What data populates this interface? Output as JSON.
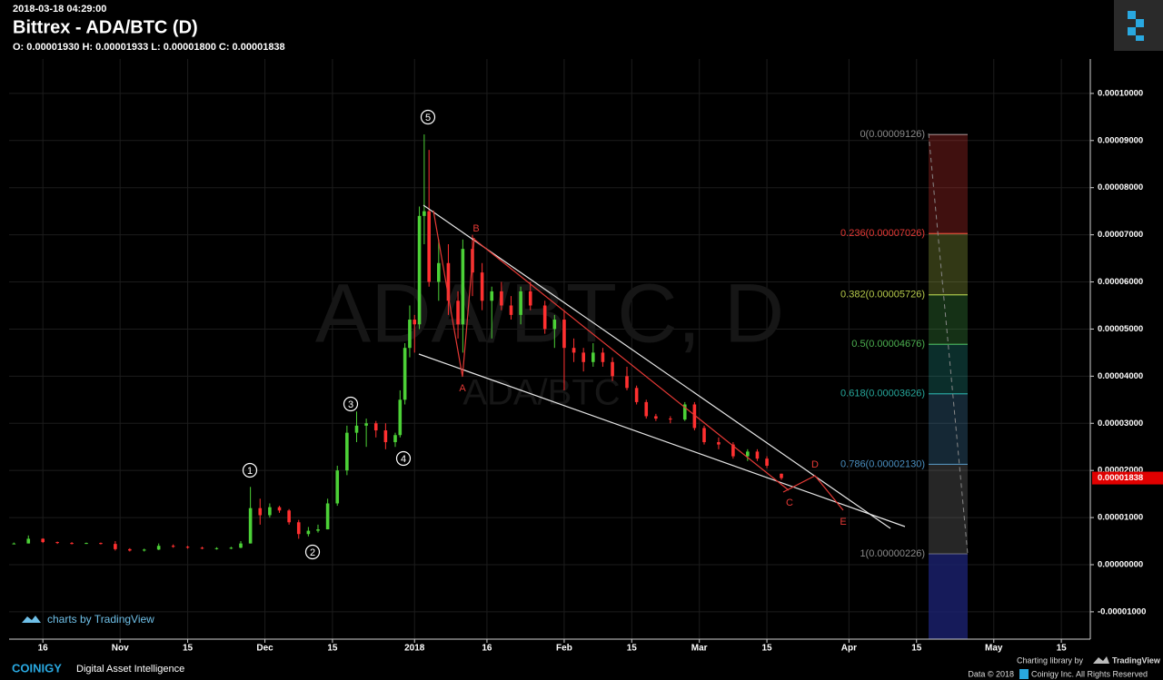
{
  "header": {
    "timestamp": "2018-03-18 04:29:00",
    "title": "Bittrex - ADA/BTC (D)",
    "ohlc": "O: 0.00001930 H: 0.00001933 L: 0.00001800 C: 0.00001838"
  },
  "chart_data": {
    "type": "candlestick",
    "watermark": "ADA/BTC, D",
    "watermark_sub": "ADA/BTC",
    "up_color": "#4cd137",
    "down_color": "#ff3030",
    "grid": true,
    "x": [
      "2017-10-10",
      "2017-10-13",
      "2017-10-16",
      "2017-10-19",
      "2017-10-22",
      "2017-10-25",
      "2017-10-28",
      "2017-10-31",
      "2017-11-03",
      "2017-11-06",
      "2017-11-09",
      "2017-11-12",
      "2017-11-15",
      "2017-11-18",
      "2017-11-21",
      "2017-11-24",
      "2017-11-26",
      "2017-11-28",
      "2017-11-30",
      "2017-12-02",
      "2017-12-04",
      "2017-12-06",
      "2017-12-08",
      "2017-12-10",
      "2017-12-12",
      "2017-12-14",
      "2017-12-16",
      "2017-12-18",
      "2017-12-20",
      "2017-12-22",
      "2017-12-24",
      "2017-12-26",
      "2017-12-28",
      "2017-12-29",
      "2017-12-30",
      "2017-12-31",
      "2018-01-01",
      "2018-01-02",
      "2018-01-03",
      "2018-01-04",
      "2018-01-06",
      "2018-01-08",
      "2018-01-10",
      "2018-01-11",
      "2018-01-13",
      "2018-01-15",
      "2018-01-17",
      "2018-01-19",
      "2018-01-21",
      "2018-01-23",
      "2018-01-25",
      "2018-01-28",
      "2018-01-30",
      "2018-02-01",
      "2018-02-03",
      "2018-02-05",
      "2018-02-07",
      "2018-02-09",
      "2018-02-11",
      "2018-02-14",
      "2018-02-16",
      "2018-02-18",
      "2018-02-20",
      "2018-02-23",
      "2018-02-26",
      "2018-02-28",
      "2018-03-02",
      "2018-03-05",
      "2018-03-08",
      "2018-03-11",
      "2018-03-13",
      "2018-03-15",
      "2018-03-18"
    ],
    "open": [
      4.5e-06,
      4.5e-06,
      5.5e-06,
      4.8e-06,
      4.6e-06,
      4.5e-06,
      4.6e-06,
      4.4e-06,
      3.3e-06,
      3e-06,
      3.2e-06,
      4e-06,
      3.8e-06,
      3.6e-06,
      3.4e-06,
      3.5e-06,
      3.6e-06,
      4.5e-06,
      1.2e-05,
      1.05e-05,
      1.22e-05,
      1.15e-05,
      9e-06,
      6.5e-06,
      7.2e-06,
      7.5e-06,
      1.3e-05,
      2e-05,
      2.8e-05,
      2.95e-05,
      3e-05,
      2.85e-05,
      2.6e-05,
      2.75e-05,
      3.5e-05,
      4.6e-05,
      5.2e-05,
      5.1e-05,
      7.4e-05,
      7.5e-05,
      6e-05,
      6.4e-05,
      5.6e-05,
      5.1e-05,
      6.7e-05,
      6.2e-05,
      5.6e-05,
      5.8e-05,
      5.5e-05,
      5.3e-05,
      5.8e-05,
      5.5e-05,
      5e-05,
      5.2e-05,
      4.6e-05,
      4.5e-05,
      4.3e-05,
      4.5e-05,
      4.3e-05,
      4e-05,
      3.75e-05,
      3.45e-05,
      3.15e-05,
      3.1e-05,
      3.08e-05,
      3.4e-05,
      2.9e-05,
      2.6e-05,
      2.55e-05,
      2.3e-05,
      2.4e-05,
      2.25e-05,
      1.93e-05
    ],
    "high": [
      4.7e-06,
      6.2e-06,
      5.6e-06,
      4.9e-06,
      4.8e-06,
      4.7e-06,
      4.7e-06,
      5e-06,
      3.5e-06,
      3.4e-06,
      4.5e-06,
      4.3e-06,
      4e-06,
      3.8e-06,
      3.7e-06,
      3.8e-06,
      5e-06,
      1.65e-05,
      1.4e-05,
      1.3e-05,
      1.25e-05,
      1.18e-05,
      9.5e-06,
      8e-06,
      8.5e-06,
      1.4e-05,
      2.1e-05,
      2.95e-05,
      3.25e-05,
      3.1e-05,
      3.05e-05,
      3e-05,
      2.8e-05,
      3.7e-05,
      4.7e-05,
      5.5e-05,
      5.3e-05,
      7.6e-05,
      9.13e-05,
      8.8e-05,
      6.9e-05,
      6.8e-05,
      5.8e-05,
      6.9e-05,
      7e-05,
      6.4e-05,
      5.9e-05,
      6e-05,
      5.7e-05,
      5.9e-05,
      6e-05,
      5.6e-05,
      5.3e-05,
      5.4e-05,
      4.8e-05,
      4.6e-05,
      4.7e-05,
      4.6e-05,
      4.4e-05,
      4.2e-05,
      3.8e-05,
      3.5e-05,
      3.2e-05,
      3.15e-05,
      3.45e-05,
      3.45e-05,
      2.95e-05,
      2.7e-05,
      2.6e-05,
      2.45e-05,
      2.45e-05,
      2.3e-05,
      1.933e-05
    ],
    "low": [
      4.4e-06,
      4.5e-06,
      4.6e-06,
      4.4e-06,
      4.3e-06,
      4.4e-06,
      4.3e-06,
      3e-06,
      2.8e-06,
      2.8e-06,
      3.1e-06,
      3.6e-06,
      3.4e-06,
      3.3e-06,
      3.2e-06,
      3.3e-06,
      3.5e-06,
      4.5e-06,
      8.5e-06,
      1e-05,
      1.1e-05,
      8.5e-06,
      5.5e-06,
      6e-06,
      6.8e-06,
      7.5e-06,
      1.25e-05,
      1.9e-05,
      2.6e-05,
      2.5e-05,
      2.7e-05,
      2.45e-05,
      2.5e-05,
      2.7e-05,
      3.4e-05,
      4.4e-05,
      4.5e-05,
      5e-05,
      6.8e-05,
      5.9e-05,
      5.6e-05,
      5.3e-05,
      4.8e-05,
      4.5e-05,
      5.7e-05,
      5.4e-05,
      4.8e-05,
      5.4e-05,
      5.2e-05,
      5.1e-05,
      5.4e-05,
      4.9e-05,
      4.6e-05,
      3.7e-05,
      4.3e-05,
      4.1e-05,
      4.2e-05,
      4.2e-05,
      3.9e-05,
      3.7e-05,
      3.4e-05,
      3.1e-05,
      3.05e-05,
      3e-05,
      3.05e-05,
      2.85e-05,
      2.55e-05,
      2.45e-05,
      2.25e-05,
      2.2e-05,
      2.2e-05,
      2.05e-05,
      1.8e-05
    ],
    "close": [
      4.5e-06,
      5.5e-06,
      4.8e-06,
      4.6e-06,
      4.5e-06,
      4.6e-06,
      4.4e-06,
      3.3e-06,
      3e-06,
      3.2e-06,
      4e-06,
      3.8e-06,
      3.6e-06,
      3.4e-06,
      3.5e-06,
      3.6e-06,
      4.5e-06,
      1.2e-05,
      1.05e-05,
      1.22e-05,
      1.15e-05,
      9e-06,
      6.5e-06,
      7.2e-06,
      7.5e-06,
      1.3e-05,
      2e-05,
      2.8e-05,
      2.95e-05,
      3e-05,
      2.85e-05,
      2.6e-05,
      2.75e-05,
      3.5e-05,
      4.6e-05,
      5.2e-05,
      5.1e-05,
      7.4e-05,
      7.5e-05,
      6e-05,
      6.4e-05,
      5.6e-05,
      5.1e-05,
      6.7e-05,
      6.2e-05,
      5.6e-05,
      5.8e-05,
      5.5e-05,
      5.3e-05,
      5.8e-05,
      5.5e-05,
      5e-05,
      5.2e-05,
      4.6e-05,
      4.5e-05,
      4.3e-05,
      4.5e-05,
      4.3e-05,
      4e-05,
      3.75e-05,
      3.45e-05,
      3.15e-05,
      3.1e-05,
      3.08e-05,
      3.4e-05,
      2.9e-05,
      2.6e-05,
      2.55e-05,
      2.3e-05,
      2.4e-05,
      2.25e-05,
      2.1e-05,
      1.838e-05
    ],
    "last_price_label": "0.00001838",
    "xlim": [
      "2017-10-09",
      "2018-05-21"
    ],
    "xticks": [
      {
        "value": "2017-10-16",
        "label": "16"
      },
      {
        "value": "2017-11-01",
        "label": "Nov"
      },
      {
        "value": "2017-11-15",
        "label": "15"
      },
      {
        "value": "2017-12-01",
        "label": "Dec"
      },
      {
        "value": "2017-12-15",
        "label": "15"
      },
      {
        "value": "2018-01-01",
        "label": "2018"
      },
      {
        "value": "2018-01-16",
        "label": "16"
      },
      {
        "value": "2018-02-01",
        "label": "Feb"
      },
      {
        "value": "2018-02-15",
        "label": "15"
      },
      {
        "value": "2018-03-01",
        "label": "Mar"
      },
      {
        "value": "2018-03-15",
        "label": "15"
      },
      {
        "value": "2018-04-01",
        "label": "Apr"
      },
      {
        "value": "2018-04-15",
        "label": "15"
      },
      {
        "value": "2018-05-01",
        "label": "May"
      },
      {
        "value": "2018-05-15",
        "label": "15"
      }
    ],
    "ylim": [
      -1.58e-05,
      0.0001073
    ],
    "yticks": [
      {
        "value": -1e-05,
        "label": "-0.00001000"
      },
      {
        "value": 0,
        "label": "0.00000000"
      },
      {
        "value": 1e-05,
        "label": "0.00001000"
      },
      {
        "value": 2e-05,
        "label": "0.00002000"
      },
      {
        "value": 3e-05,
        "label": "0.00003000"
      },
      {
        "value": 4e-05,
        "label": "0.00004000"
      },
      {
        "value": 5e-05,
        "label": "0.00005000"
      },
      {
        "value": 6e-05,
        "label": "0.00006000"
      },
      {
        "value": 7e-05,
        "label": "0.00007000"
      },
      {
        "value": 8e-05,
        "label": "0.00008000"
      },
      {
        "value": 9e-05,
        "label": "0.00009000"
      },
      {
        "value": 0.0001,
        "label": "0.00010000"
      }
    ],
    "fib_levels": [
      {
        "value": 9.126e-05,
        "label": "0(0.00009126)",
        "color": "#8a8a8a"
      },
      {
        "value": 7.026e-05,
        "label": "0.236(0.00007026)",
        "color": "#e53935"
      },
      {
        "value": 5.726e-05,
        "label": "0.382(0.00005726)",
        "color": "#b5c94a"
      },
      {
        "value": 4.676e-05,
        "label": "0.5(0.00004676)",
        "color": "#4caf50"
      },
      {
        "value": 3.626e-05,
        "label": "0.618(0.00003626)",
        "color": "#26a69a"
      },
      {
        "value": 2.13e-05,
        "label": "0.786(0.00002130)",
        "color": "#4a8fc0"
      },
      {
        "value": 2.26e-06,
        "label": "1(0.00000226)",
        "color": "#8a8a8a"
      }
    ],
    "fib_tail_color": "#1c2270",
    "waves": [
      "1",
      "2",
      "3",
      "4",
      "5"
    ],
    "letters": [
      "A",
      "B",
      "C",
      "D",
      "E"
    ]
  },
  "footer": {
    "badge": "charts by TradingView",
    "brand": "COINIGY",
    "tagline": "Digital Asset Intelligence",
    "credit": "Charting library by",
    "credit_brand": "TradingView",
    "copyright": "Data © 2018",
    "copyright_owner": "Coinigy Inc. All Rights Reserved"
  }
}
